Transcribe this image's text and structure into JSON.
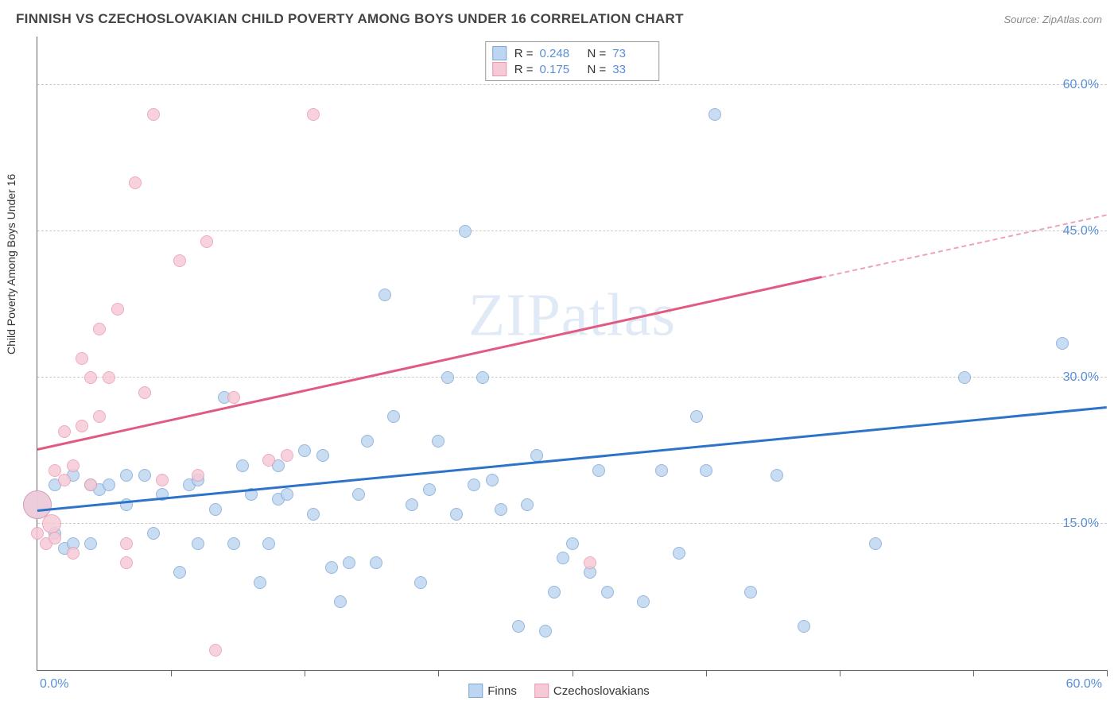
{
  "header": {
    "title": "FINNISH VS CZECHOSLOVAKIAN CHILD POVERTY AMONG BOYS UNDER 16 CORRELATION CHART",
    "source": "Source: ZipAtlas.com"
  },
  "watermark": "ZIPatlas",
  "chart": {
    "type": "scatter",
    "background_color": "#ffffff",
    "grid_color": "#cccccc",
    "axis_color": "#666666",
    "yaxis_title": "Child Poverty Among Boys Under 16",
    "xlim": [
      0,
      60
    ],
    "ylim": [
      0,
      65
    ],
    "xticks_minor": [
      0,
      7.5,
      15,
      22.5,
      30,
      37.5,
      45,
      52.5,
      60
    ],
    "xaxis_label_left": "0.0%",
    "xaxis_label_right": "60.0%",
    "ygrid": [
      {
        "v": 15,
        "label": "15.0%"
      },
      {
        "v": 30,
        "label": "30.0%"
      },
      {
        "v": 45,
        "label": "45.0%"
      },
      {
        "v": 60,
        "label": "60.0%"
      }
    ],
    "series": [
      {
        "key": "finns",
        "label": "Finns",
        "fill": "#bcd5f0",
        "stroke": "#7fa8d8",
        "trend_color": "#2d73c9",
        "trend": {
          "x1": 0,
          "y1": 16.2,
          "x2": 60,
          "y2": 26.8,
          "dash_from_x": 60
        },
        "R": "0.248",
        "N": "73",
        "marker_r": 8,
        "points": [
          [
            0,
            17,
            18
          ],
          [
            1,
            14
          ],
          [
            1.5,
            12.5
          ],
          [
            2,
            13
          ],
          [
            1,
            19
          ],
          [
            2,
            20
          ],
          [
            3,
            13
          ],
          [
            3,
            19
          ],
          [
            3.5,
            18.5
          ],
          [
            4,
            19
          ],
          [
            5,
            17
          ],
          [
            5,
            20
          ],
          [
            6,
            20
          ],
          [
            6.5,
            14
          ],
          [
            7,
            18
          ],
          [
            8,
            10
          ],
          [
            8.5,
            19
          ],
          [
            9,
            13
          ],
          [
            9,
            19.5
          ],
          [
            10,
            16.5
          ],
          [
            10.5,
            28
          ],
          [
            11,
            13
          ],
          [
            11.5,
            21
          ],
          [
            12,
            18
          ],
          [
            12.5,
            9
          ],
          [
            13,
            13
          ],
          [
            13.5,
            17.5
          ],
          [
            13.5,
            21
          ],
          [
            14,
            18
          ],
          [
            15,
            22.5
          ],
          [
            15.5,
            16
          ],
          [
            16,
            22
          ],
          [
            16.5,
            10.5
          ],
          [
            17,
            7
          ],
          [
            17.5,
            11
          ],
          [
            18,
            18
          ],
          [
            18.5,
            23.5
          ],
          [
            19,
            11
          ],
          [
            19.5,
            38.5
          ],
          [
            20,
            26
          ],
          [
            21,
            17
          ],
          [
            21.5,
            9
          ],
          [
            22,
            18.5
          ],
          [
            22.5,
            23.5
          ],
          [
            23,
            30
          ],
          [
            23.5,
            16
          ],
          [
            24,
            45
          ],
          [
            24.5,
            19
          ],
          [
            25,
            30
          ],
          [
            25.5,
            19.5
          ],
          [
            26,
            16.5
          ],
          [
            27,
            4.5
          ],
          [
            27.5,
            17
          ],
          [
            28,
            22
          ],
          [
            28.5,
            4
          ],
          [
            29,
            8
          ],
          [
            29.5,
            11.5
          ],
          [
            30,
            13
          ],
          [
            31,
            10
          ],
          [
            31.5,
            20.5
          ],
          [
            32,
            8
          ],
          [
            34,
            7
          ],
          [
            35,
            20.5
          ],
          [
            36,
            12
          ],
          [
            37,
            26
          ],
          [
            37.5,
            20.5
          ],
          [
            38,
            57
          ],
          [
            40,
            8
          ],
          [
            41.5,
            20
          ],
          [
            43,
            4.5
          ],
          [
            47,
            13
          ],
          [
            52,
            30
          ],
          [
            57.5,
            33.5
          ]
        ]
      },
      {
        "key": "czechs",
        "label": "Czechoslovakians",
        "fill": "#f6c9d6",
        "stroke": "#e89ab2",
        "trend_color": "#e05a82",
        "trend": {
          "x1": 0,
          "y1": 22.5,
          "x2": 44,
          "y2": 40.2,
          "dash_from_x": 44,
          "dash_x2": 60,
          "dash_y2": 46.6
        },
        "R": "0.175",
        "N": "33",
        "marker_r": 8,
        "points": [
          [
            0,
            14
          ],
          [
            0,
            17,
            18
          ],
          [
            0.5,
            13
          ],
          [
            0.8,
            15,
            12
          ],
          [
            1,
            20.5
          ],
          [
            1,
            13.5
          ],
          [
            1.5,
            19.5
          ],
          [
            1.5,
            24.5
          ],
          [
            2,
            12
          ],
          [
            2,
            21
          ],
          [
            2.5,
            32
          ],
          [
            2.5,
            25
          ],
          [
            3,
            30
          ],
          [
            3,
            19
          ],
          [
            3.5,
            26
          ],
          [
            3.5,
            35
          ],
          [
            4,
            30
          ],
          [
            4.5,
            37
          ],
          [
            5,
            13
          ],
          [
            5,
            11
          ],
          [
            5.5,
            50
          ],
          [
            6,
            28.5
          ],
          [
            6.5,
            57
          ],
          [
            7,
            19.5
          ],
          [
            8,
            42
          ],
          [
            9,
            20
          ],
          [
            9.5,
            44
          ],
          [
            10,
            2
          ],
          [
            11,
            28
          ],
          [
            13,
            21.5
          ],
          [
            14,
            22
          ],
          [
            15.5,
            57
          ],
          [
            31,
            11
          ]
        ]
      }
    ],
    "legend_top": {
      "metric_r": "R =",
      "metric_n": "N ="
    },
    "legend_bottom": [
      {
        "swatch_fill": "#bcd5f0",
        "swatch_stroke": "#7fa8d8",
        "label": "Finns"
      },
      {
        "swatch_fill": "#f6c9d6",
        "swatch_stroke": "#e89ab2",
        "label": "Czechoslovakians"
      }
    ]
  }
}
